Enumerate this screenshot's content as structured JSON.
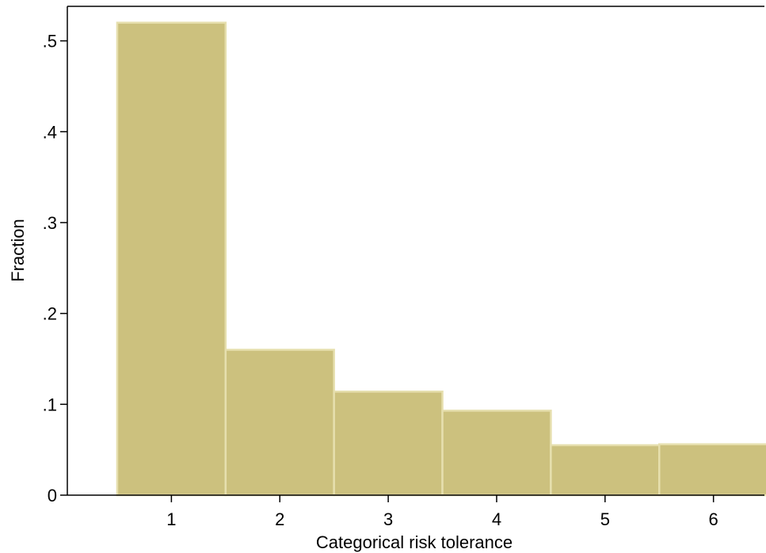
{
  "chart_data": {
    "type": "bar",
    "categories": [
      "1",
      "2",
      "3",
      "4",
      "5",
      "6"
    ],
    "values": [
      0.52,
      0.16,
      0.114,
      0.093,
      0.055,
      0.056
    ],
    "title": "",
    "xlabel": "Categorical risk tolerance",
    "ylabel": "Fraction",
    "ylim": [
      0,
      0.538
    ],
    "xlim": [
      0.04,
      6.47
    ],
    "yticks": [
      {
        "value": 0,
        "label": "0"
      },
      {
        "value": 0.1,
        "label": ".1"
      },
      {
        "value": 0.2,
        "label": ".2"
      },
      {
        "value": 0.3,
        "label": ".3"
      },
      {
        "value": 0.4,
        "label": ".4"
      },
      {
        "value": 0.5,
        "label": ".5"
      }
    ],
    "xticks": [
      {
        "value": 1,
        "label": "1"
      },
      {
        "value": 2,
        "label": "2"
      },
      {
        "value": 3,
        "label": "3"
      },
      {
        "value": 4,
        "label": "4"
      },
      {
        "value": 5,
        "label": "5"
      },
      {
        "value": 6,
        "label": "6"
      }
    ],
    "bar_width": 1,
    "grid": false,
    "legend": "none",
    "colors": {
      "bar_fill": "#ccc17e",
      "bar_edge": "#e6dfae",
      "axis": "#000000",
      "background": "#ffffff"
    }
  }
}
